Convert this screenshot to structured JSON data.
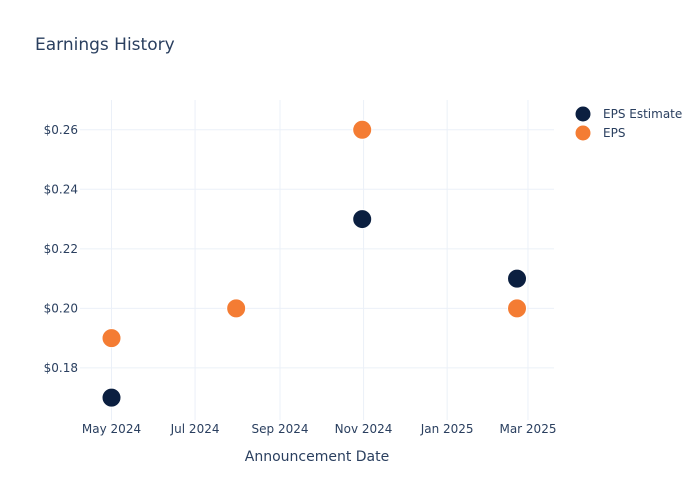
{
  "chart_data": {
    "type": "scatter",
    "title": "Earnings History",
    "xlabel": "Announcement Date",
    "ylabel": "",
    "x_axis_type": "date",
    "x_range": [
      "2024-04-08",
      "2025-03-20"
    ],
    "x_ticks": [
      {
        "date": "2024-05-01",
        "label": "May 2024"
      },
      {
        "date": "2024-07-01",
        "label": "Jul 2024"
      },
      {
        "date": "2024-09-01",
        "label": "Sep 2024"
      },
      {
        "date": "2024-11-01",
        "label": "Nov 2024"
      },
      {
        "date": "2025-01-01",
        "label": "Jan 2025"
      },
      {
        "date": "2025-03-01",
        "label": "Mar 2025"
      }
    ],
    "ylim": [
      0.1625,
      0.27
    ],
    "y_ticks": [
      {
        "value": 0.18,
        "label": "$0.18"
      },
      {
        "value": 0.2,
        "label": "$0.20"
      },
      {
        "value": 0.22,
        "label": "$0.22"
      },
      {
        "value": 0.24,
        "label": "$0.24"
      },
      {
        "value": 0.26,
        "label": "$0.26"
      }
    ],
    "grid": true,
    "legend_position": "top-right",
    "series": [
      {
        "name": "EPS Estimate",
        "color": "#0b1f40",
        "points": [
          {
            "x": "2024-05-01",
            "y": 0.17
          },
          {
            "x": "2024-07-31",
            "y": 0.2
          },
          {
            "x": "2024-10-31",
            "y": 0.23
          },
          {
            "x": "2025-02-21",
            "y": 0.21
          }
        ]
      },
      {
        "name": "EPS",
        "color": "#f47c33",
        "points": [
          {
            "x": "2024-05-01",
            "y": 0.19
          },
          {
            "x": "2024-07-31",
            "y": 0.2
          },
          {
            "x": "2024-10-31",
            "y": 0.26
          },
          {
            "x": "2025-02-21",
            "y": 0.2
          }
        ]
      }
    ]
  }
}
